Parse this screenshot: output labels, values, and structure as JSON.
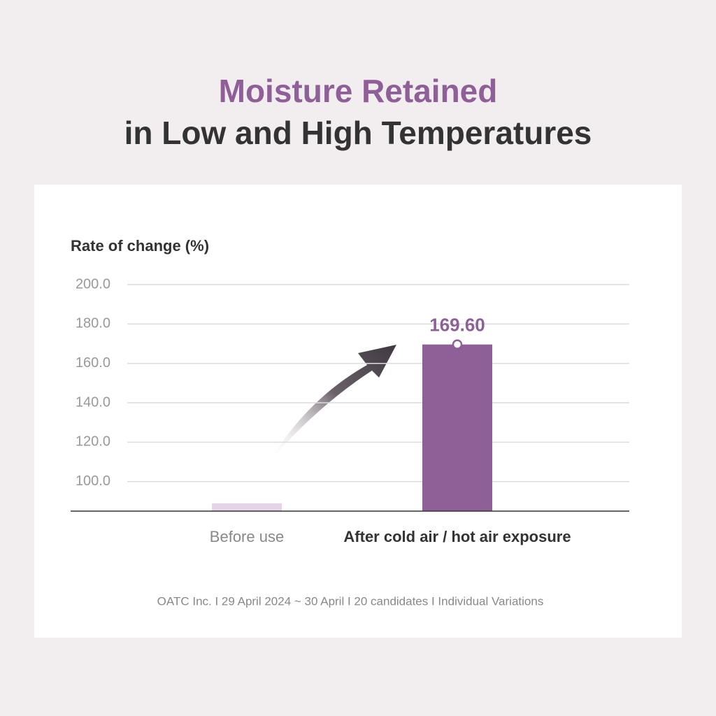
{
  "chart_data": {
    "type": "bar",
    "title": "Moisture Retained",
    "subtitle": "in Low and High Temperatures",
    "y_label": "Rate of change (%)",
    "categories": [
      "Before use",
      "After cold air / hot air exposure"
    ],
    "values": [
      89,
      169.6
    ],
    "value_labels": [
      null,
      "169.60"
    ],
    "colors": [
      "#e4d4e7",
      "#8f6097"
    ],
    "ylim": [
      85,
      200
    ],
    "yticks": [
      {
        "value": 100,
        "label": "100.0"
      },
      {
        "value": 120,
        "label": "120.0"
      },
      {
        "value": 140,
        "label": "140.0"
      },
      {
        "value": 160,
        "label": "160.0"
      },
      {
        "value": 180,
        "label": "180.0"
      },
      {
        "value": 200,
        "label": "200.0"
      }
    ],
    "grid": true,
    "note": "OATC Inc. I 29 April 2024 ~ 30 April I 20 candidates I Individual Variations"
  }
}
